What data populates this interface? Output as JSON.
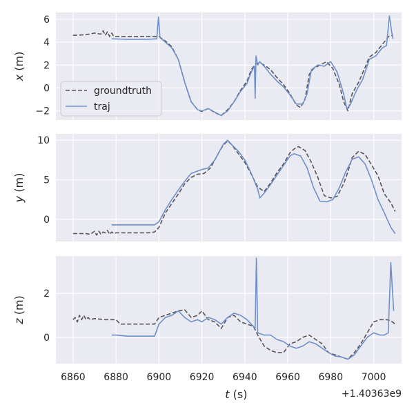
{
  "chart_data": {
    "type": "line",
    "x_axis": {
      "label_italic": "t",
      "label_unit": " (s)",
      "ticks": [
        6860,
        6880,
        6900,
        6920,
        6940,
        6960,
        6980,
        7000
      ],
      "tick_labels": [
        "6860",
        "6880",
        "6900",
        "6920",
        "6940",
        "6960",
        "6980",
        "7000"
      ],
      "offset_label": "+1.40363e9",
      "xlim": [
        6852,
        7013
      ]
    },
    "legend": {
      "placement": "lower-left of top panel",
      "entries": [
        {
          "label": "groundtruth",
          "style": "dashed",
          "color": "#555555"
        },
        {
          "label": "traj",
          "style": "solid",
          "color": "#6f8fc8"
        }
      ]
    },
    "panels": [
      {
        "id": "x",
        "label_italic": "x",
        "label_unit": " (m)",
        "ylim": [
          -2.8,
          6.6
        ],
        "yticks": [
          -2,
          0,
          2,
          4,
          6
        ],
        "ytick_labels": [
          "−2",
          "0",
          "2",
          "4",
          "6"
        ],
        "series": [
          {
            "name": "groundtruth",
            "x": [
              6860,
              6866,
              6870,
              6873,
              6874,
              6875,
              6876,
              6877,
              6878,
              6879,
              6880,
              6885,
              6890,
              6895,
              6900,
              6903,
              6906,
              6909,
              6912,
              6915,
              6918,
              6920,
              6923,
              6926,
              6929,
              6932,
              6935,
              6938,
              6941,
              6943,
              6945,
              6947,
              6949,
              6952,
              6955,
              6958,
              6961,
              6964,
              6966,
              6968,
              6970,
              6972,
              6975,
              6978,
              6981,
              6984,
              6986,
              6988,
              6990,
              6993,
              6996,
              6998,
              7001,
              7004,
              7007,
              7009
            ],
            "values": [
              4.6,
              4.65,
              4.8,
              4.7,
              5.0,
              4.6,
              4.9,
              4.5,
              4.8,
              4.5,
              4.5,
              4.5,
              4.5,
              4.5,
              4.5,
              4.1,
              3.6,
              2.5,
              0.5,
              -1.2,
              -1.9,
              -2.05,
              -1.8,
              -2.15,
              -2.4,
              -1.9,
              -1.2,
              -0.2,
              0.6,
              1.6,
              2.1,
              2.2,
              2.0,
              1.6,
              0.9,
              0.3,
              -0.5,
              -1.5,
              -1.7,
              -1.0,
              1.2,
              1.7,
              2.0,
              2.3,
              1.7,
              0.3,
              -1.2,
              -2.0,
              -0.5,
              0.5,
              1.8,
              2.7,
              3.1,
              3.8,
              4.5,
              4.6
            ]
          },
          {
            "name": "traj",
            "x": [
              6878,
              6885,
              6890,
              6895,
              6899,
              6899.8,
              6900.5,
              6903,
              6906,
              6909,
              6912,
              6915,
              6918,
              6920,
              6923,
              6926,
              6929,
              6932,
              6935,
              6938,
              6941,
              6943,
              6944.5,
              6944.8,
              6945.2,
              6946,
              6947,
              6949,
              6952,
              6955,
              6958,
              6961,
              6964,
              6967,
              6969,
              6971,
              6974,
              6977,
              6980,
              6983,
              6986,
              6987.5,
              6989,
              6992,
              6995,
              6998,
              7001,
              7004,
              7006,
              7007.3,
              7008.3,
              7009
            ],
            "values": [
              4.3,
              4.25,
              4.25,
              4.25,
              4.3,
              6.2,
              4.4,
              4.0,
              3.5,
              2.5,
              0.5,
              -1.2,
              -1.9,
              -2.0,
              -1.8,
              -2.1,
              -2.4,
              -2.0,
              -1.2,
              -0.3,
              0.4,
              1.4,
              1.9,
              -0.9,
              2.8,
              2.0,
              2.3,
              1.9,
              1.2,
              0.6,
              0.1,
              -0.6,
              -1.4,
              -1.4,
              -0.5,
              1.6,
              2.0,
              1.9,
              2.3,
              1.4,
              -0.5,
              -1.8,
              -1.5,
              -0.2,
              0.8,
              2.5,
              2.8,
              3.5,
              3.7,
              6.3,
              5.0,
              4.3
            ]
          }
        ]
      },
      {
        "id": "y",
        "label_italic": "y",
        "label_unit": " (m)",
        "ylim": [
          -2.8,
          10.8
        ],
        "yticks": [
          0,
          5,
          10
        ],
        "ytick_labels": [
          "0",
          "5",
          "10"
        ],
        "series": [
          {
            "name": "groundtruth",
            "x": [
              6860,
              6866,
              6868,
              6870,
              6871,
              6872,
              6873,
              6874,
              6875,
              6876,
              6877,
              6878,
              6879,
              6880,
              6885,
              6890,
              6895,
              6898,
              6900,
              6903,
              6906,
              6909,
              6912,
              6915,
              6918,
              6921,
              6924,
              6926,
              6928,
              6930,
              6932,
              6934,
              6937,
              6940,
              6943,
              6946,
              6949,
              6952,
              6955,
              6958,
              6961,
              6963,
              6965,
              6968,
              6971,
              6974,
              6977,
              6980,
              6983,
              6986,
              6988,
              6990,
              6993,
              6996,
              6999,
              7002,
              7005,
              7008,
              7010
            ],
            "values": [
              -1.8,
              -1.8,
              -1.9,
              -1.5,
              -2.0,
              -1.5,
              -1.9,
              -1.6,
              -1.7,
              -1.4,
              -1.9,
              -1.6,
              -1.8,
              -1.7,
              -1.7,
              -1.7,
              -1.7,
              -1.6,
              -1.0,
              0.8,
              2.0,
              3.2,
              4.5,
              5.3,
              5.7,
              5.8,
              6.5,
              7.5,
              8.5,
              9.4,
              9.9,
              9.4,
              8.3,
              7.2,
              5.7,
              4.1,
              3.5,
              4.6,
              5.9,
              7.0,
              8.4,
              8.9,
              9.2,
              8.7,
              7.2,
              5.3,
              3.0,
              2.7,
              2.9,
              4.5,
              6.0,
              7.8,
              8.6,
              8.2,
              6.9,
              5.5,
              3.2,
              2.1,
              1.0
            ]
          },
          {
            "name": "traj",
            "x": [
              6878,
              6885,
              6890,
              6895,
              6898,
              6900,
              6903,
              6906,
              6909,
              6912,
              6915,
              6918,
              6920,
              6923,
              6926,
              6928,
              6930,
              6932,
              6934,
              6937,
              6940,
              6943,
              6946,
              6947,
              6949,
              6952,
              6955,
              6958,
              6961,
              6963,
              6966,
              6969,
              6972,
              6975,
              6978,
              6981,
              6984,
              6987,
              6990,
              6993,
              6996,
              6999,
              7002,
              7005,
              7008,
              7010
            ],
            "values": [
              -0.7,
              -0.7,
              -0.7,
              -0.7,
              -0.7,
              -0.3,
              1.2,
              2.5,
              3.7,
              4.8,
              5.8,
              6.1,
              6.3,
              6.5,
              7.5,
              8.5,
              9.5,
              10.0,
              9.4,
              8.6,
              7.5,
              5.8,
              3.8,
              2.7,
              3.3,
              4.4,
              5.6,
              6.8,
              8.0,
              8.3,
              8.0,
              6.5,
              4.0,
              2.3,
              2.2,
              2.5,
              4.0,
              6.0,
              7.6,
              7.9,
              7.0,
              5.0,
              2.5,
              0.8,
              -1.0,
              -1.8
            ]
          }
        ]
      },
      {
        "id": "z",
        "label_italic": "z",
        "label_unit": " (m)",
        "ylim": [
          -1.2,
          3.7
        ],
        "yticks": [
          0,
          2
        ],
        "ytick_labels": [
          "0",
          "2"
        ],
        "series": [
          {
            "name": "groundtruth",
            "x": [
              6860,
              6861,
              6862,
              6863,
              6864,
              6865,
              6866,
              6867,
              6868,
              6870,
              6875,
              6880,
              6882,
              6885,
              6890,
              6895,
              6898,
              6900,
              6903,
              6906,
              6909,
              6912,
              6915,
              6918,
              6920,
              6923,
              6926,
              6929,
              6932,
              6935,
              6938,
              6941,
              6944,
              6946,
              6949,
              6952,
              6955,
              6958,
              6961,
              6964,
              6967,
              6970,
              6973,
              6976,
              6979,
              6982,
              6985,
              6988,
              6991,
              6994,
              6997,
              7000,
              7003,
              7006,
              7008,
              7010
            ],
            "values": [
              0.8,
              0.9,
              0.7,
              1.0,
              0.8,
              1.0,
              0.8,
              0.9,
              0.8,
              0.85,
              0.8,
              0.8,
              0.6,
              0.6,
              0.6,
              0.6,
              0.6,
              0.9,
              1.0,
              1.1,
              1.2,
              1.25,
              0.9,
              1.0,
              1.2,
              0.8,
              0.7,
              0.4,
              0.9,
              1.0,
              0.7,
              0.6,
              0.5,
              0.1,
              -0.4,
              -0.6,
              -0.7,
              -0.7,
              -0.3,
              -0.2,
              0.0,
              0.1,
              -0.1,
              -0.3,
              -0.7,
              -0.8,
              -0.9,
              -1.0,
              -0.7,
              -0.3,
              0.2,
              0.7,
              0.8,
              0.8,
              0.75,
              0.6
            ]
          },
          {
            "name": "traj",
            "x": [
              6878,
              6880,
              6885,
              6890,
              6895,
              6898,
              6900,
              6903,
              6906,
              6909,
              6912,
              6915,
              6918,
              6920,
              6923,
              6926,
              6929,
              6932,
              6935,
              6938,
              6941,
              6944,
              6944.8,
              6945.4,
              6946,
              6949,
              6952,
              6955,
              6958,
              6961,
              6964,
              6967,
              6970,
              6973,
              6976,
              6979,
              6982,
              6985,
              6988,
              6991,
              6994,
              6997,
              7000,
              7003,
              7005,
              7006.8,
              7008,
              7009.3
            ],
            "values": [
              0.1,
              0.1,
              0.05,
              0.05,
              0.05,
              0.05,
              0.6,
              0.9,
              1.0,
              1.2,
              0.9,
              0.7,
              0.8,
              0.7,
              0.9,
              0.8,
              0.6,
              0.9,
              1.1,
              1.0,
              0.8,
              0.5,
              0.4,
              3.6,
              0.2,
              0.1,
              0.1,
              -0.1,
              -0.2,
              -0.4,
              -0.5,
              -0.4,
              -0.2,
              -0.3,
              -0.5,
              -0.7,
              -0.85,
              -0.9,
              -1.0,
              -0.8,
              -0.4,
              0.0,
              0.2,
              0.1,
              0.1,
              0.2,
              3.4,
              1.2
            ]
          }
        ]
      }
    ]
  }
}
